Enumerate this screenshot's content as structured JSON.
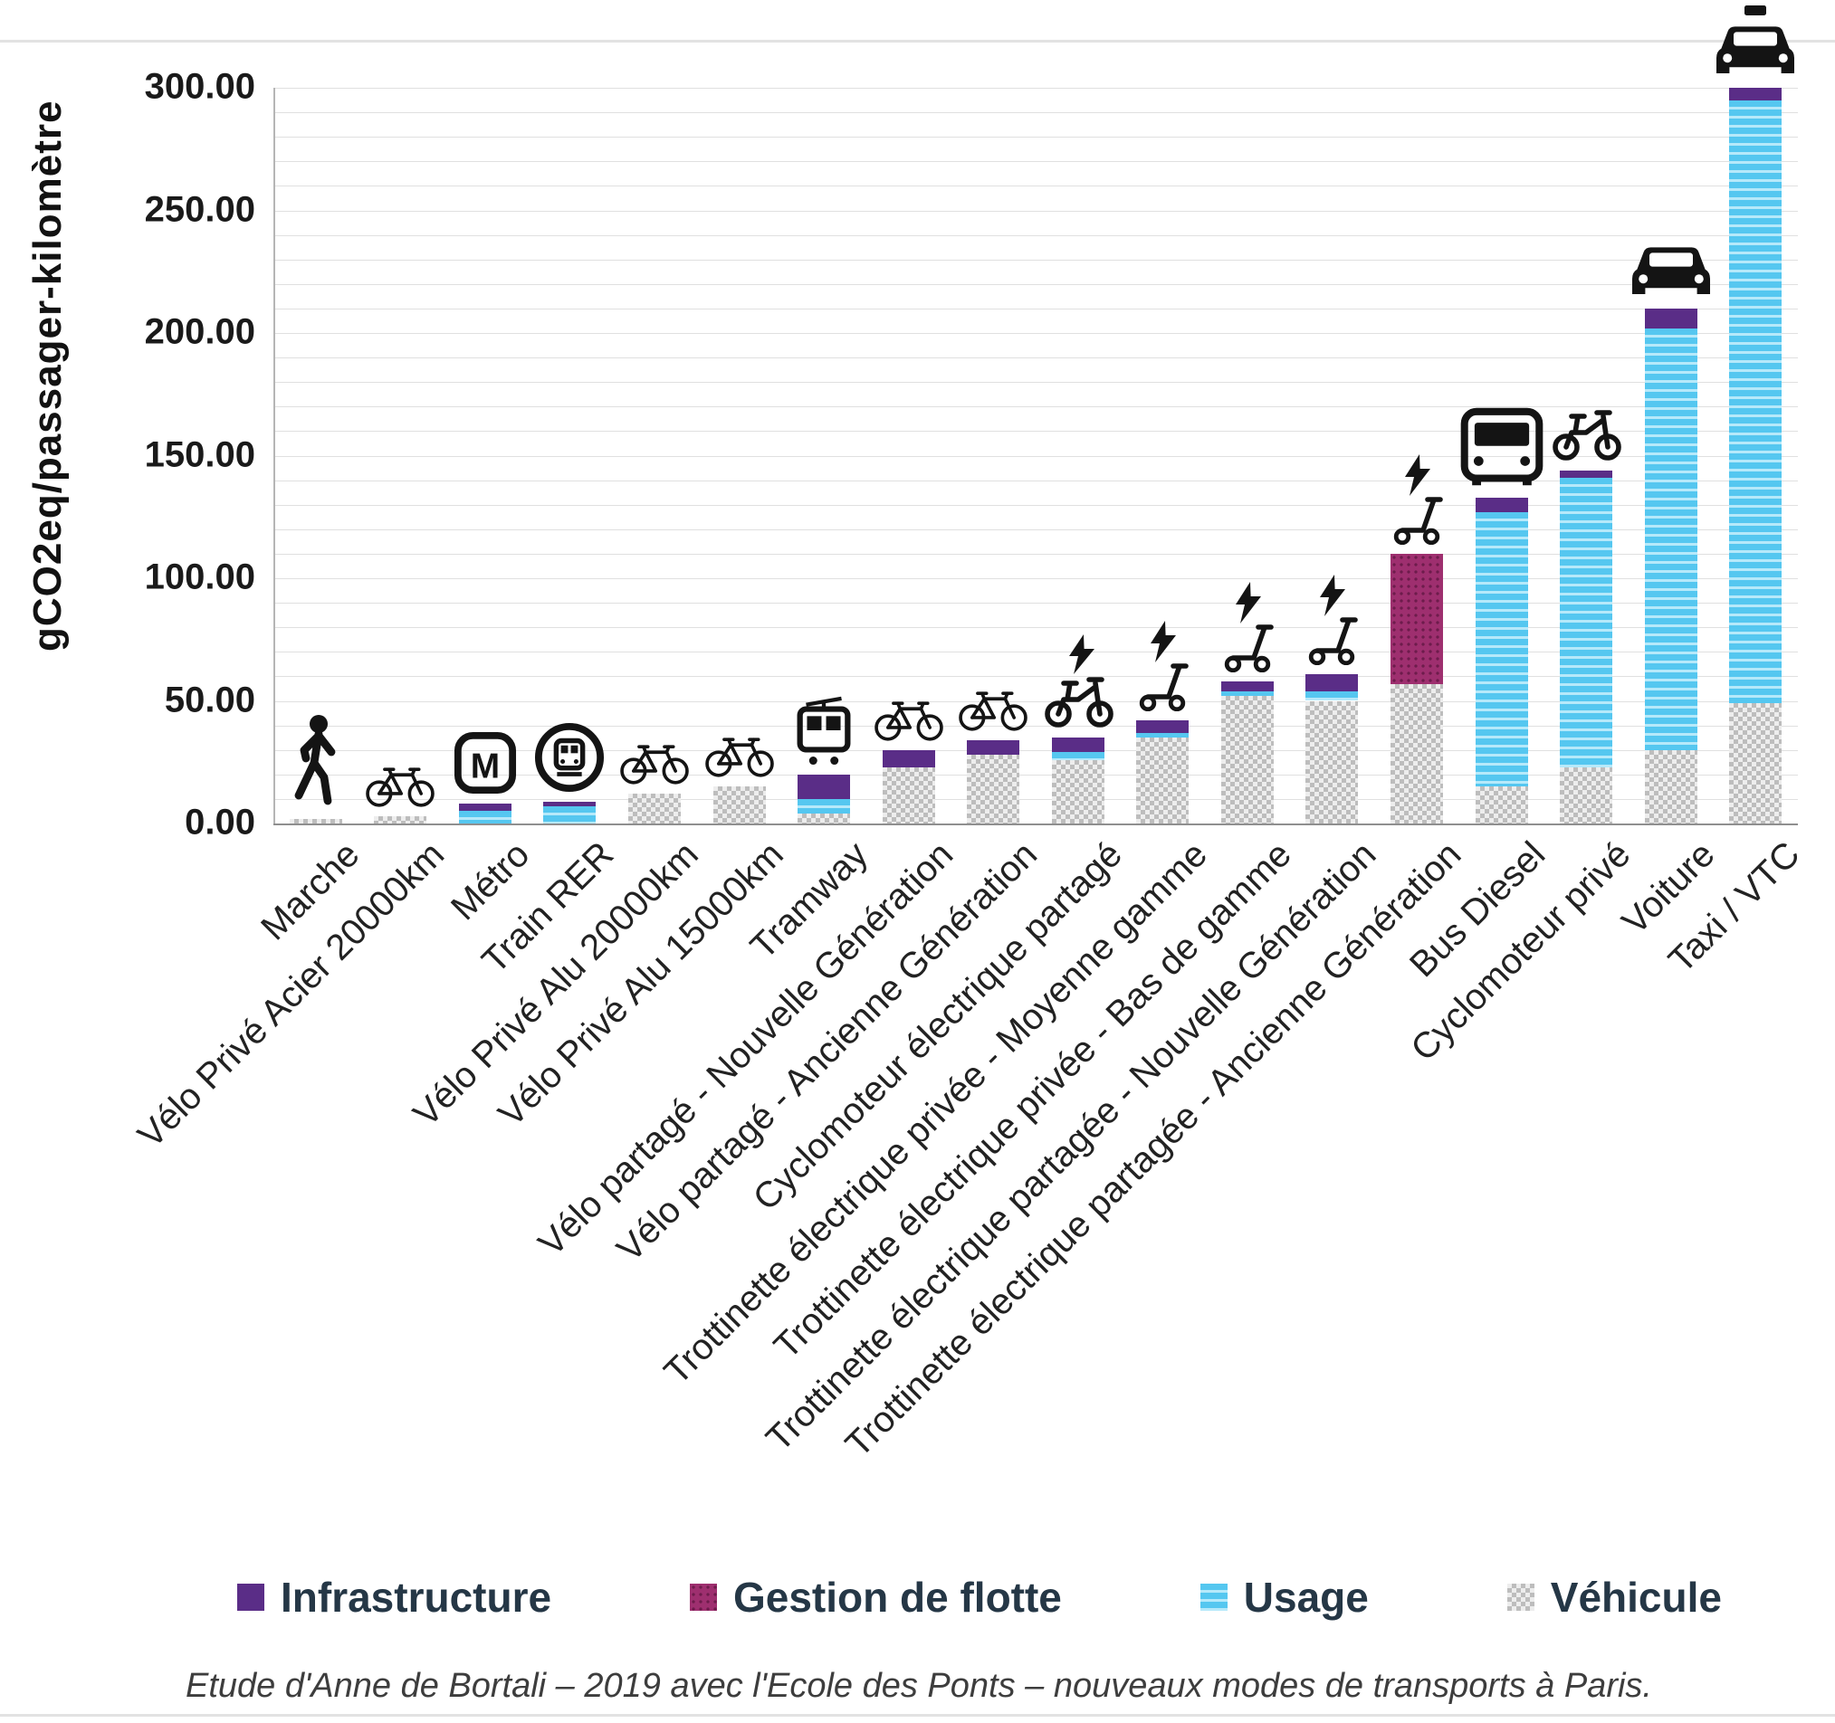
{
  "page": {
    "background": "#ffffff"
  },
  "chart_data": {
    "type": "bar",
    "stacked": true,
    "title": "",
    "ylabel": "gCO2eq/passager-kilomètre",
    "xlabel": "",
    "ylim": [
      0,
      300
    ],
    "grid": true,
    "grid_step": 10,
    "legend_position": "bottom",
    "yticks": [
      0,
      50,
      100,
      150,
      200,
      250,
      300
    ],
    "ytick_labels": [
      "0.00",
      "50.00",
      "100.00",
      "150.00",
      "200.00",
      "250.00",
      "300.00"
    ],
    "categories": [
      "Marche",
      "Vélo Privé Acier 20000km",
      "Métro",
      "Train RER",
      "Vélo Privé Alu 20000km",
      "Vélo Privé Alu 15000km",
      "Tramway",
      "Vélo partagé - Nouvelle Génération",
      "Vélo partagé - Ancienne Génération",
      "Cyclomoteur électrique partagé",
      "Trottinette électrique privée - Moyenne gamme",
      "Trottinette électrique privée - Bas de gamme",
      "Trottinette électrique partagée - Nouvelle Génération",
      "Trottinette électrique partagée - Ancienne Génération",
      "Bus Diesel",
      "Cyclomoteur privé",
      "Voiture",
      "Taxi / VTC"
    ],
    "series": [
      {
        "name": "Véhicule",
        "key": "vehicule",
        "color": "#c4c4c4",
        "pattern": "checker",
        "values": [
          2,
          3,
          0,
          0,
          12,
          15,
          4,
          23,
          28,
          26,
          35,
          52,
          50,
          57,
          15,
          23,
          30,
          49
        ]
      },
      {
        "name": "Usage",
        "key": "usage",
        "color": "#56c7f0",
        "pattern": "horizontal-stripes",
        "values": [
          0,
          0,
          5,
          7,
          0,
          0,
          6,
          0,
          0,
          3,
          2,
          2,
          4,
          0,
          112,
          118,
          172,
          246
        ]
      },
      {
        "name": "Gestion de flotte",
        "key": "gestion",
        "color": "#9e2f6f",
        "pattern": "dots",
        "values": [
          0,
          0,
          0,
          0,
          0,
          0,
          0,
          0,
          0,
          0,
          0,
          0,
          0,
          53,
          0,
          0,
          0,
          0
        ]
      },
      {
        "name": "Infrastructure",
        "key": "infrastructure",
        "color": "#5a2d87",
        "pattern": "solid",
        "values": [
          0,
          0,
          3,
          2,
          0,
          0,
          10,
          7,
          6,
          6,
          5,
          4,
          7,
          0,
          6,
          3,
          8,
          5
        ]
      }
    ],
    "icon_names": [
      "pedestrian-icon",
      "bicycle-icon",
      "metro-icon",
      "rer-icon",
      "bicycle-icon",
      "bicycle-icon",
      "tram-icon",
      "bicycle-icon",
      "bicycle-icon",
      "moped-electric-icon",
      "scooter-electric-icon",
      "scooter-electric-icon",
      "scooter-electric-icon",
      "scooter-electric-icon",
      "bus-icon",
      "moped-icon",
      "car-icon",
      "taxi-icon"
    ]
  },
  "legend": {
    "items": [
      {
        "label": "Infrastructure",
        "key": "infrastructure"
      },
      {
        "label": "Gestion de flotte",
        "key": "gestion"
      },
      {
        "label": "Usage",
        "key": "usage"
      },
      {
        "label": "Véhicule",
        "key": "vehicule"
      }
    ]
  },
  "caption": "Etude d'Anne de Bortali  – 2019 avec l'Ecole des Ponts – nouveaux modes de transports à Paris."
}
